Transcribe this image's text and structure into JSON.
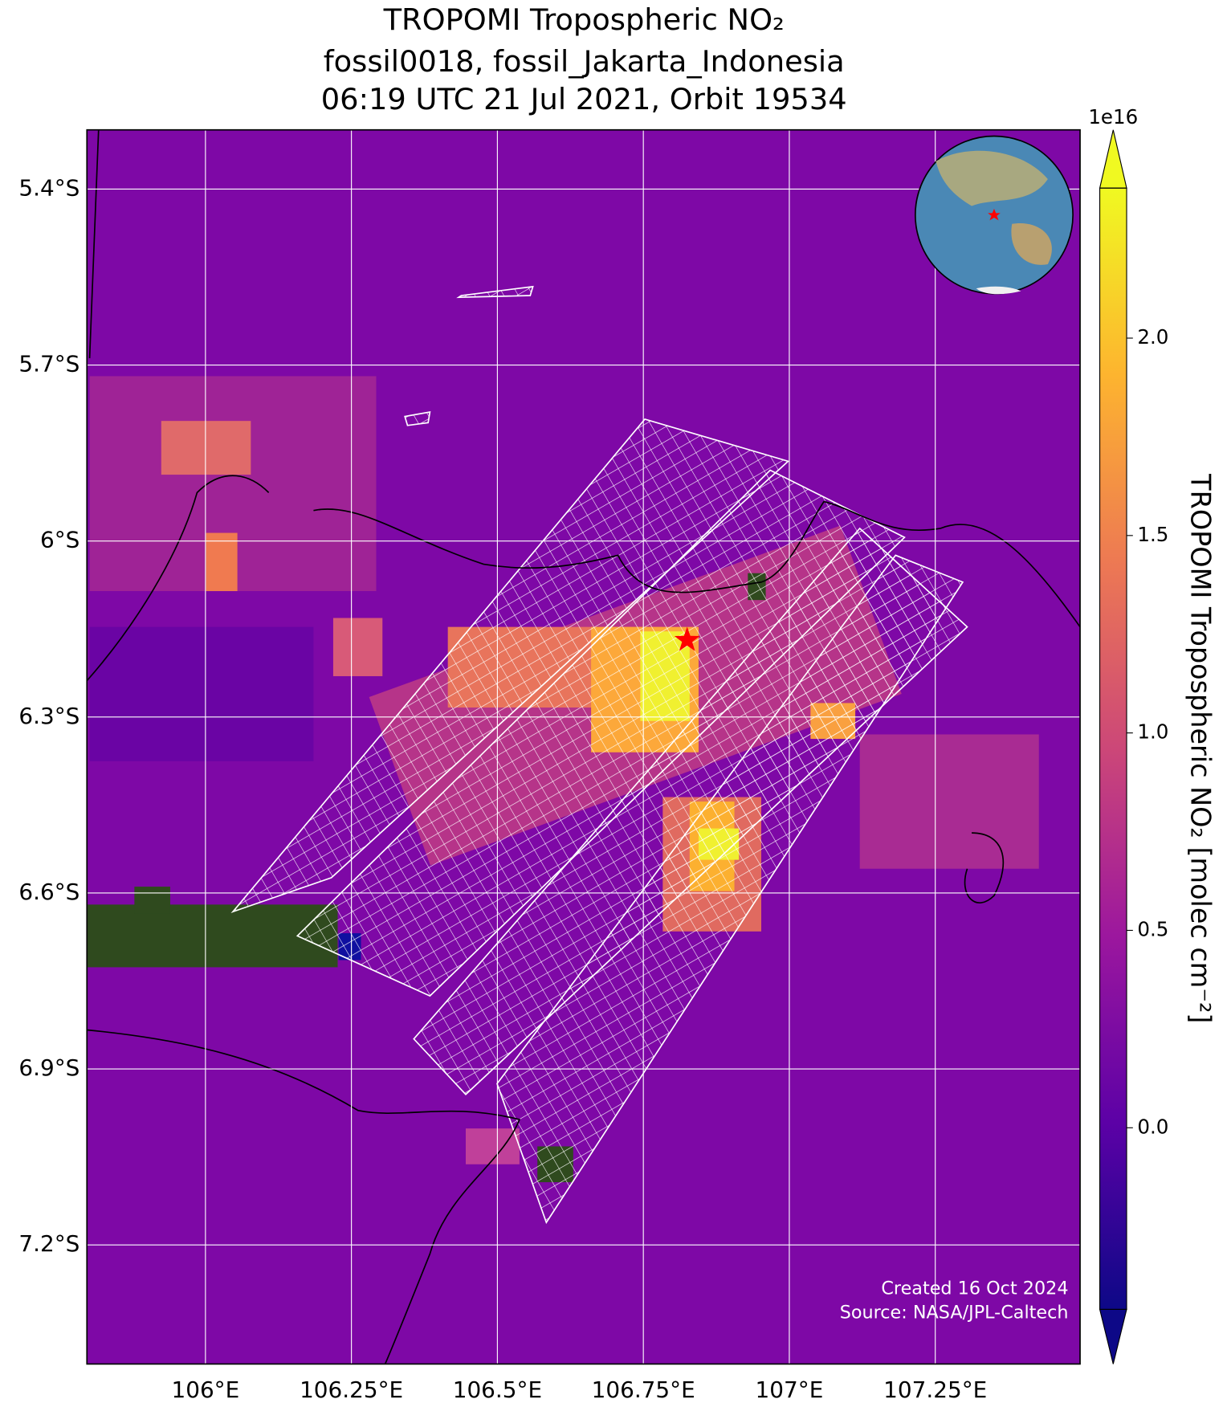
{
  "chart_data": {
    "type": "map",
    "title": [
      "TROPOMI Tropospheric NO₂",
      "fossil0018, fossil_Jakarta_Indonesia",
      "06:19 UTC 21 Jul 2021, Orbit 19534"
    ],
    "xlim": [
      105.797,
      107.498
    ],
    "ylim": [
      -7.403,
      -5.299
    ],
    "xticks": [
      {
        "value": 106,
        "label": "106°E"
      },
      {
        "value": 106.25,
        "label": "106.25°E"
      },
      {
        "value": 106.5,
        "label": "106.5°E"
      },
      {
        "value": 106.75,
        "label": "106.75°E"
      },
      {
        "value": 107,
        "label": "107°E"
      },
      {
        "value": 107.25,
        "label": "107.25°E"
      }
    ],
    "yticks": [
      {
        "value": -5.4,
        "label": "5.4°S"
      },
      {
        "value": -5.7,
        "label": "5.7°S"
      },
      {
        "value": -6.0,
        "label": "6°S"
      },
      {
        "value": -6.3,
        "label": "6.3°S"
      },
      {
        "value": -6.6,
        "label": "6.6°S"
      },
      {
        "value": -6.9,
        "label": "6.9°S"
      },
      {
        "value": -7.2,
        "label": "7.2°S"
      }
    ],
    "grid": true,
    "target": {
      "lon": 106.825,
      "lat": -6.169,
      "color": "#ff0000"
    },
    "colorbar": {
      "label": "TROPOMI Tropospheric NO₂ [molec cm⁻²]",
      "offset_label": "1e16",
      "clim": [
        -0.46,
        2.38
      ],
      "ticks": [
        {
          "value": 0,
          "label": "0.0"
        },
        0.5,
        {
          "value": 1,
          "label": "1.0"
        },
        1.5,
        {
          "value": 2,
          "label": "2.0"
        }
      ],
      "colormap": [
        "#0d0887",
        "#5c01a6",
        "#9c179e",
        "#cc4778",
        "#ed7953",
        "#fdb42f",
        "#f0f921"
      ]
    },
    "credits": [
      "Created 16 Oct 2024",
      "Source: NASA/JPL-Caltech"
    ]
  }
}
